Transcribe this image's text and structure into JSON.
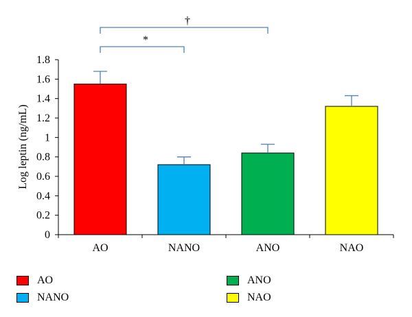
{
  "chart_data": {
    "type": "bar",
    "categories": [
      "AO",
      "NANO",
      "ANO",
      "NAO"
    ],
    "values": [
      1.55,
      0.72,
      0.84,
      1.32
    ],
    "errors": [
      0.13,
      0.08,
      0.09,
      0.11
    ],
    "colors": [
      "#ff0000",
      "#00b0f0",
      "#00b050",
      "#ffff00"
    ],
    "error_bar_color": "#4f81bd",
    "ylabel": "Log leptin (ng/mL)",
    "ylim": [
      0,
      1.8
    ],
    "yticks": [
      0,
      0.2,
      0.4,
      0.6,
      0.8,
      1,
      1.2,
      1.4,
      1.6,
      1.8
    ],
    "ytick_labels": [
      "0",
      "0.2",
      "0.4",
      "0.6",
      "0.8",
      "1",
      "1.2",
      "1.4",
      "1.6",
      "1.8"
    ],
    "grid": false,
    "legend_position": "bottom",
    "significance": [
      {
        "from": "AO",
        "to": "NANO",
        "label": "*"
      },
      {
        "from": "AO",
        "to": "ANO",
        "label": "†"
      }
    ]
  },
  "legend": {
    "items": [
      {
        "label": "AO",
        "color": "#ff0000"
      },
      {
        "label": "ANO",
        "color": "#00b050"
      },
      {
        "label": "NANO",
        "color": "#00b0f0"
      },
      {
        "label": "NAO",
        "color": "#ffff00"
      }
    ]
  }
}
